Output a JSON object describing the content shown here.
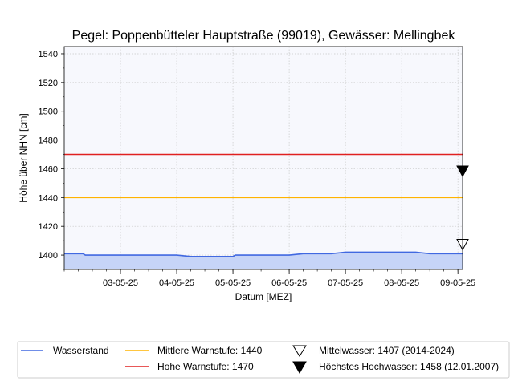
{
  "chart_data": {
    "type": "line",
    "title": "Pegel:  Poppenbütteler Hauptstraße (99019), Gewässer:  Mellingbek",
    "xlabel": "Datum [MEZ]",
    "ylabel": "Höhe über NHN [cm]",
    "ylim": [
      1390,
      1545
    ],
    "yticks": [
      1400,
      1420,
      1440,
      1460,
      1480,
      1500,
      1520,
      1540
    ],
    "xlim": [
      "2025-05-02 00:00",
      "2025-05-09 02:00"
    ],
    "xtick_labels": [
      "03-05-25",
      "04-05-25",
      "05-05-25",
      "06-05-25",
      "07-05-25",
      "08-05-25",
      "09-05-25"
    ],
    "xtick_dates": [
      "2025-05-03",
      "2025-05-04",
      "2025-05-05",
      "2025-05-06",
      "2025-05-07",
      "2025-05-08",
      "2025-05-09"
    ],
    "grid": true,
    "legend_placement": "bottom",
    "colors": {
      "wasserstand": "#4169e1",
      "wasserstand_fill": "#c6d4f7",
      "mittlere_warnstufe": "#ffb300",
      "hohe_warnstufe": "#e02020",
      "plot_background": "#f7f8fd"
    },
    "series": [
      {
        "name": "Wasserstand",
        "points": [
          [
            "2025-05-02 00:00",
            1401
          ],
          [
            "2025-05-02 08:00",
            1401
          ],
          [
            "2025-05-02 09:00",
            1400
          ],
          [
            "2025-05-02 12:00",
            1400
          ],
          [
            "2025-05-02 16:00",
            1400
          ],
          [
            "2025-05-03 00:00",
            1400
          ],
          [
            "2025-05-03 12:00",
            1400
          ],
          [
            "2025-05-04 00:00",
            1400
          ],
          [
            "2025-05-04 06:00",
            1399
          ],
          [
            "2025-05-04 12:00",
            1399
          ],
          [
            "2025-05-05 00:00",
            1399
          ],
          [
            "2025-05-05 01:00",
            1400
          ],
          [
            "2025-05-05 12:00",
            1400
          ],
          [
            "2025-05-06 00:00",
            1400
          ],
          [
            "2025-05-06 06:00",
            1401
          ],
          [
            "2025-05-06 12:00",
            1401
          ],
          [
            "2025-05-06 18:00",
            1401
          ],
          [
            "2025-05-07 00:00",
            1402
          ],
          [
            "2025-05-07 12:00",
            1402
          ],
          [
            "2025-05-08 00:00",
            1402
          ],
          [
            "2025-05-08 06:00",
            1402
          ],
          [
            "2025-05-08 12:00",
            1401
          ],
          [
            "2025-05-09 00:00",
            1401
          ],
          [
            "2025-05-09 02:00",
            1401
          ]
        ]
      },
      {
        "name": "Mittlere Warnstufe: 1440",
        "value": 1440
      },
      {
        "name": "Hohe Warnstufe: 1470",
        "value": 1470
      },
      {
        "name": "Mittelwasser: 1407 (2014-2024)",
        "value": 1407
      },
      {
        "name": "Höchstes Hochwasser: 1458 (12.01.2007)",
        "value": 1458
      }
    ]
  }
}
